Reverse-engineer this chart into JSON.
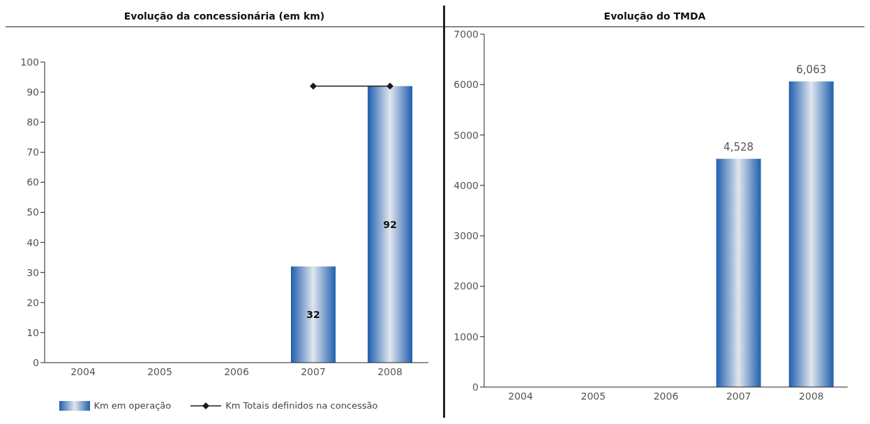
{
  "chart_data": [
    {
      "type": "bar",
      "title": "Evolução da concessionária (em km)",
      "categories": [
        "2004",
        "2005",
        "2006",
        "2007",
        "2008"
      ],
      "ylim": [
        0,
        100
      ],
      "yticks": [
        0,
        10,
        20,
        30,
        40,
        50,
        60,
        70,
        80,
        90,
        100
      ],
      "grid": false,
      "legend": "bottom",
      "series": [
        {
          "name": "Km em operação",
          "color": "#1f5fae",
          "values": [
            null,
            null,
            null,
            32,
            92
          ],
          "value_labels": [
            null,
            null,
            null,
            "32",
            "92"
          ]
        },
        {
          "name": "Km Totais definidos na concessão",
          "type": "line",
          "color": "#1a1a1a",
          "marker": "diamond",
          "values": [
            null,
            null,
            null,
            92,
            92
          ]
        }
      ]
    },
    {
      "type": "bar",
      "title": "Evolução do TMDA",
      "categories": [
        "2004",
        "2005",
        "2006",
        "2007",
        "2008"
      ],
      "ylim": [
        0,
        7000
      ],
      "yticks": [
        0,
        1000,
        2000,
        3000,
        4000,
        5000,
        6000,
        7000
      ],
      "grid": false,
      "legend": false,
      "series": [
        {
          "color": "#1f5fae",
          "values": [
            null,
            null,
            null,
            4528,
            6063
          ],
          "value_labels": [
            null,
            null,
            null,
            "4,528",
            "6,063"
          ]
        }
      ]
    }
  ]
}
